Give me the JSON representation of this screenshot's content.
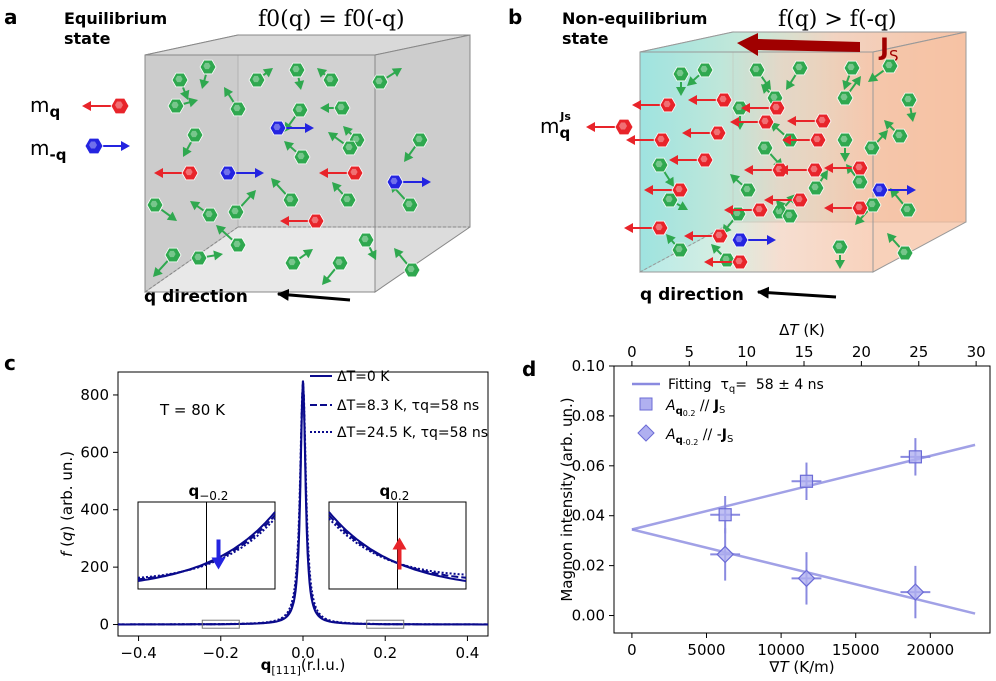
{
  "panels": {
    "a": {
      "label": "a",
      "state_line1": "Equilibrium",
      "state_line2": "state",
      "equation": "f0(q) = f0(-q)",
      "mq": "m",
      "mq_sub": "q",
      "mmq": "m",
      "mmq_sub": "-q",
      "direction": "q direction"
    },
    "b": {
      "label": "b",
      "state_line1": "Non-equilibrium",
      "state_line2": "state",
      "equation": "f(q) > f(-q)",
      "js": "J",
      "js_sub": "S",
      "mq": "m",
      "mq_sub": "q",
      "mq_sup": "Js",
      "direction": "q direction"
    },
    "c": {
      "label": "c",
      "temperature": "T = 80 K",
      "inset_left": "q",
      "inset_left_sub": "−0.2",
      "inset_right": "q",
      "inset_right_sub": "0.2"
    },
    "d": {
      "label": "d"
    }
  },
  "colors": {
    "red": "#e8242a",
    "blue": "#2424e0",
    "green": "#2fa84f",
    "navy": "#0a0a8c",
    "lavender": "#8a8ae0",
    "dark_red": "#a00000",
    "box_fill": "#d3d3d3"
  },
  "chart_data": [
    {
      "panel": "c",
      "type": "line",
      "xlabel": "q[111] (r.l.u.)",
      "ylabel": "f (q) (arb. un.)",
      "xlim": [
        -0.45,
        0.45
      ],
      "ylim": [
        -40,
        880
      ],
      "xticks": [
        -0.4,
        -0.2,
        0.0,
        0.2,
        0.4
      ],
      "xtick_labels": [
        "−0.4",
        "−0.2",
        "0.0",
        "0.2",
        "0.4"
      ],
      "yticks": [
        0,
        200,
        400,
        600,
        800
      ],
      "ytick_labels": [
        "0",
        "200",
        "400",
        "600",
        "800"
      ],
      "peak": 850,
      "series": [
        {
          "name": "ΔT=0 K",
          "style": "solid"
        },
        {
          "name": "ΔT=8.3 K, τq=58 ns",
          "style": "dashed"
        },
        {
          "name": "ΔT=24.5 K, τq=58 ns",
          "style": "dotted"
        }
      ]
    },
    {
      "panel": "d",
      "type": "scatter",
      "xlabel": "∇T (K/m)",
      "ylabel": "Magnon intensity (arb. un.)",
      "top_xlabel": "ΔT (K)",
      "xlim": [
        -1200,
        24000
      ],
      "ylim": [
        -0.007,
        0.1
      ],
      "xticks": [
        0,
        5000,
        10000,
        15000,
        20000
      ],
      "xtick_labels": [
        "0",
        "5000",
        "10000",
        "15000",
        "20000"
      ],
      "yticks": [
        0.0,
        0.02,
        0.04,
        0.06,
        0.08,
        0.1
      ],
      "ytick_labels": [
        "0.00",
        "0.02",
        "0.04",
        "0.06",
        "0.08",
        "0.10"
      ],
      "top_ticks": [
        0,
        5,
        10,
        15,
        20,
        25,
        30
      ],
      "top_tick_labels": [
        "0",
        "5",
        "10",
        "15",
        "20",
        "25",
        "30"
      ],
      "top_scale_factor": 769,
      "fit_label": "Fitting  τq=  58 ± 4 ns",
      "series": [
        {
          "name": "Aq0.2 // JS",
          "marker": "square",
          "x": [
            6250,
            11700,
            19000
          ],
          "y": [
            0.0404,
            0.0538,
            0.0636
          ],
          "xerr": [
            1000,
            1000,
            1000
          ],
          "yerr": [
            0.0075,
            0.0075,
            0.0075
          ]
        },
        {
          "name": "Aq-0.2 // -JS",
          "marker": "diamond",
          "x": [
            6250,
            11700,
            19000
          ],
          "y": [
            0.0245,
            0.0149,
            0.0094
          ],
          "xerr": [
            1000,
            1000,
            1000
          ],
          "yerr": [
            0.0105,
            0.0105,
            0.0105
          ]
        }
      ],
      "fit_lines": [
        {
          "x": [
            0,
            23000
          ],
          "y": [
            0.0345,
            0.0684
          ]
        },
        {
          "x": [
            0,
            23000
          ],
          "y": [
            0.0345,
            0.0008
          ]
        }
      ]
    }
  ]
}
